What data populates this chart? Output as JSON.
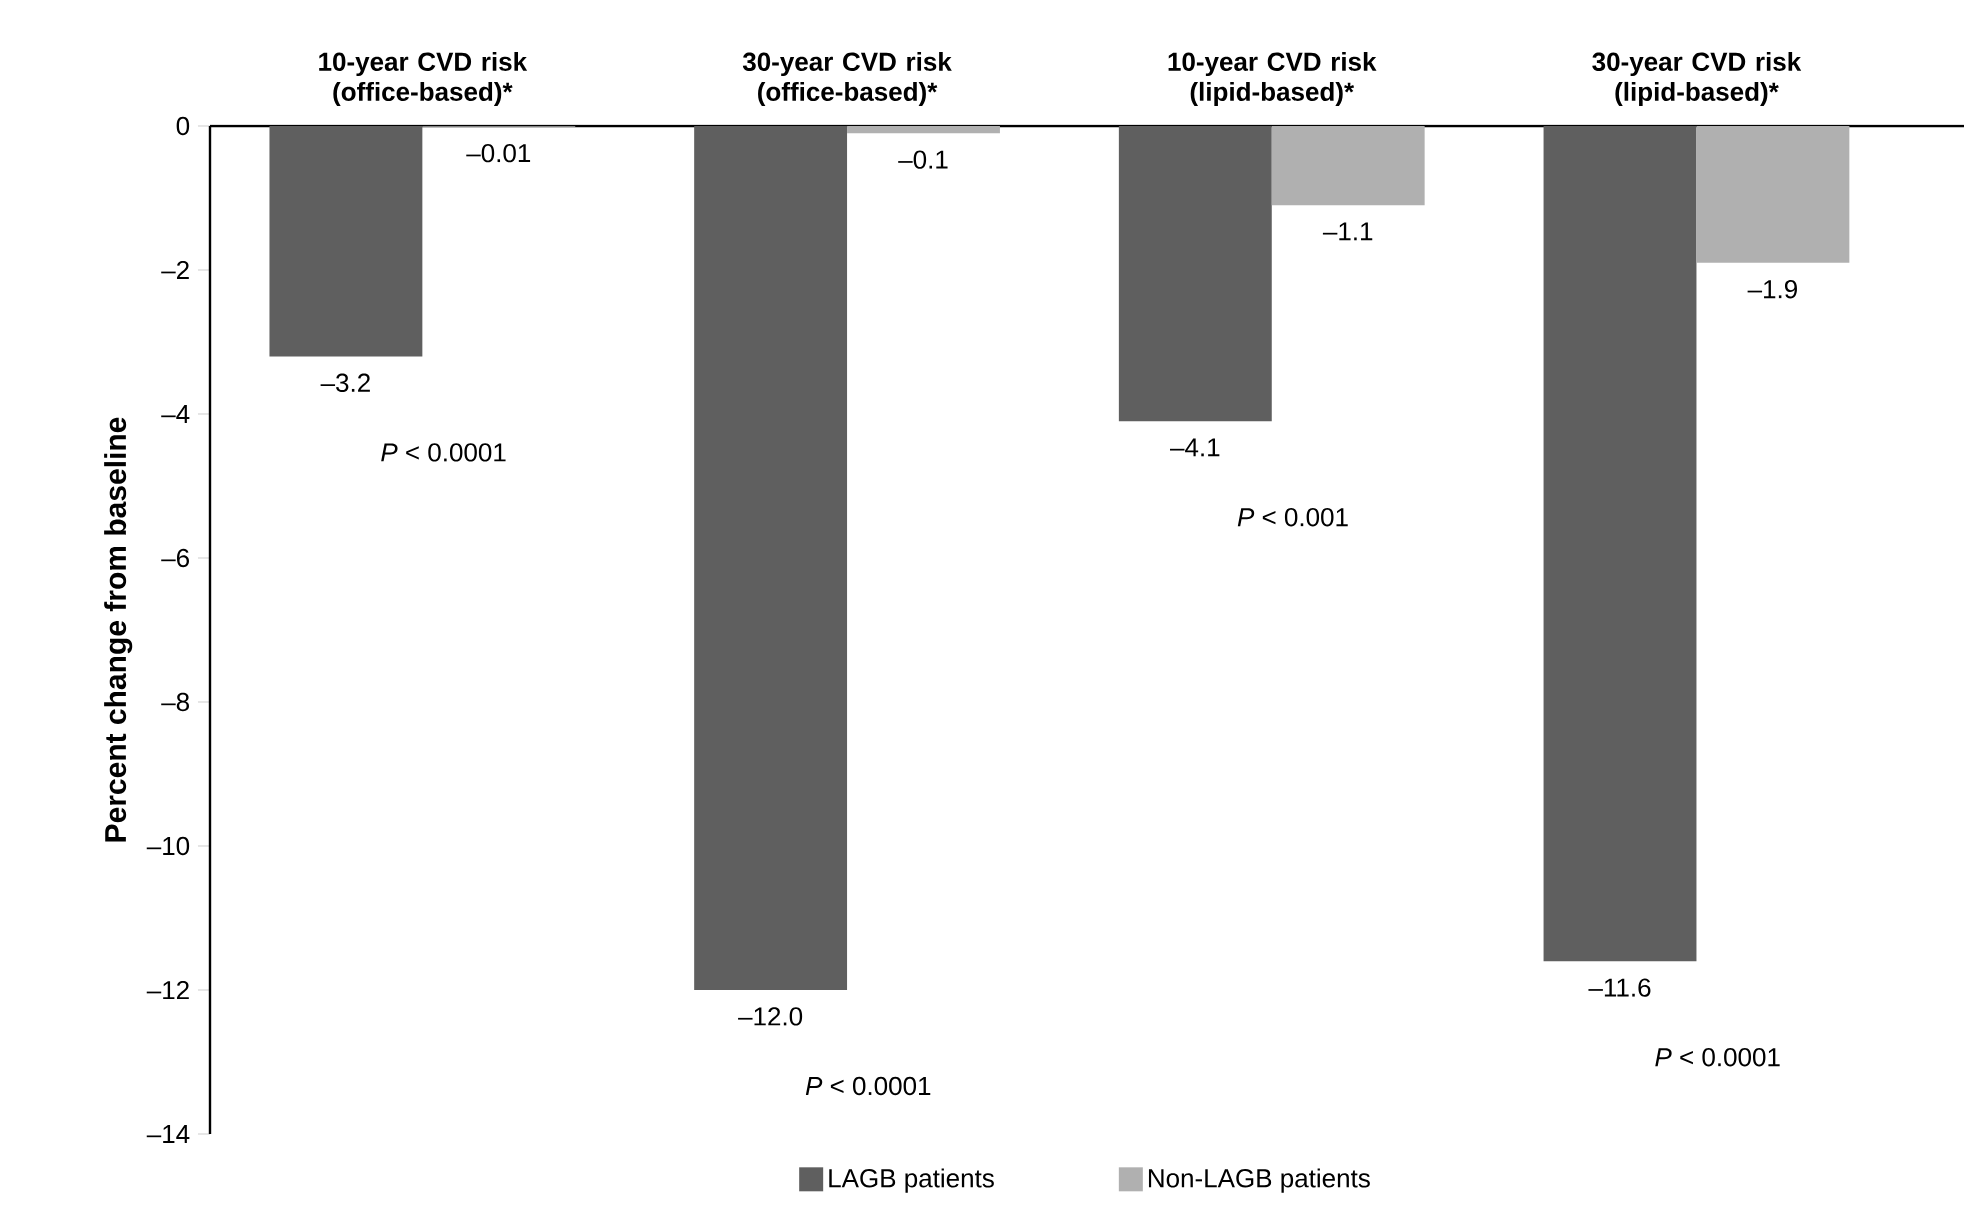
{
  "chart_data": {
    "type": "bar",
    "ylabel": "Percent change from baseline",
    "categories": [
      "10-year CVD risk (office-based)*",
      "30-year CVD risk (office-based)*",
      "10-year CVD risk (lipid-based)*",
      "30-year CVD risk (lipid-based)*"
    ],
    "series": [
      {
        "name": "LAGB patients",
        "color": "#5f5f5f",
        "values": [
          -3.2,
          -12.0,
          -4.1,
          -11.6
        ],
        "value_labels": [
          "–3.2",
          "–12.0",
          "–4.1",
          "–11.6"
        ]
      },
      {
        "name": "Non-LAGB patients",
        "color": "#b0b0b0",
        "values": [
          -0.01,
          -0.1,
          -1.1,
          -1.9
        ],
        "value_labels": [
          "–0.01",
          "–0.1",
          "–1.1",
          "–1.9"
        ]
      }
    ],
    "ylim": [
      -14,
      0
    ],
    "yticks": [
      {
        "value": -14,
        "label": "–14"
      },
      {
        "value": -12,
        "label": "–12"
      },
      {
        "value": -10,
        "label": "–10"
      },
      {
        "value": -8,
        "label": "–8"
      },
      {
        "value": -6,
        "label": "–6"
      },
      {
        "value": -4,
        "label": "–4"
      },
      {
        "value": -2,
        "label": "–2"
      },
      0
    ],
    "legend": "bottom",
    "grid": false,
    "annotations": [
      "*P* < 0.0001",
      "*P* < 0.0001",
      "*P* < 0.001",
      "*P* < 0.0001"
    ]
  }
}
